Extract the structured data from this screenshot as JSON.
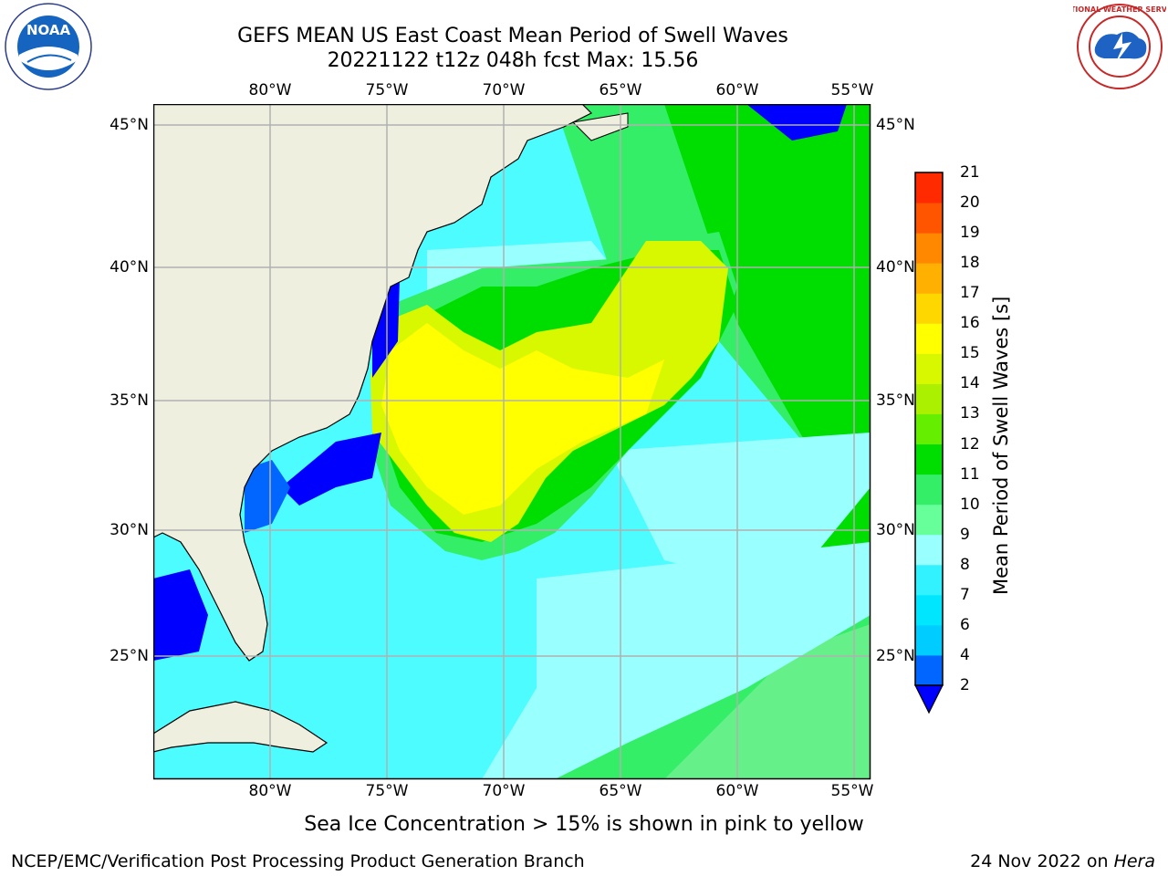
{
  "title": {
    "line1": "GEFS MEAN US East Coast Mean Period of Swell Waves",
    "line2": "20221122 t12z 048h fcst   Max: 15.56"
  },
  "map": {
    "lon_labels": [
      "80°W",
      "75°W",
      "70°W",
      "65°W",
      "60°W",
      "55°W"
    ],
    "lat_labels": [
      "45°N",
      "40°N",
      "35°N",
      "30°N",
      "25°N"
    ],
    "land_color": "#efefdf",
    "grid_color": "#b0b0b0"
  },
  "colorbar": {
    "title": "Mean Period of Swell Waves [s]",
    "ticks": [
      "2",
      "4",
      "6",
      "7",
      "8",
      "9",
      "10",
      "11",
      "12",
      "13",
      "14",
      "15",
      "16",
      "17",
      "18",
      "19",
      "20",
      "21"
    ],
    "colors": [
      "#0066ff",
      "#00ccff",
      "#00e6ff",
      "#33f2ff",
      "#99ffff",
      "#66ff99",
      "#33ee66",
      "#00dd00",
      "#66ee00",
      "#aaf000",
      "#d8f800",
      "#ffff00",
      "#ffd700",
      "#ffb000",
      "#ff8800",
      "#ff5500",
      "#ff2a00",
      "#ff0000"
    ],
    "under_color": "#0000ff"
  },
  "footer": {
    "ice_note": "Sea Ice Concentration > 15% is shown in pink to yellow",
    "branch": "NCEP/EMC/Verification Post Processing Product Generation Branch",
    "run_date": "24 Nov 2022 on ",
    "run_host": "Hera"
  },
  "logos": {
    "noaa": "NOAA",
    "nws": "NATIONAL WEATHER SERVICE"
  }
}
